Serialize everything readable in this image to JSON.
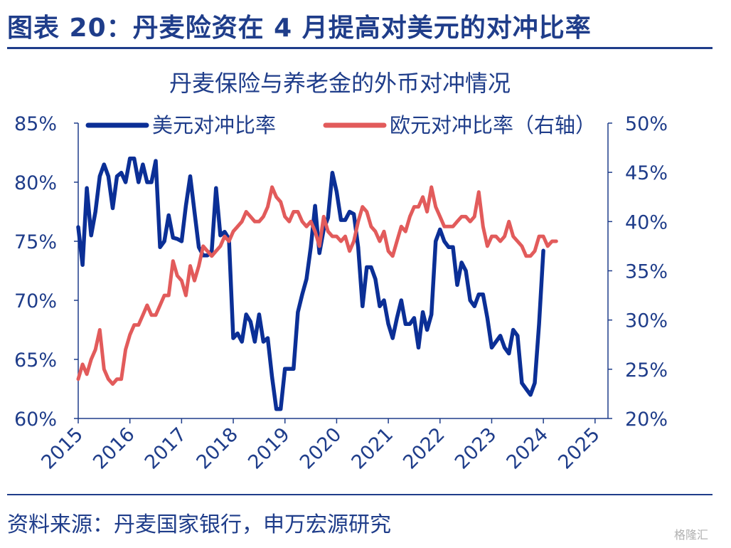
{
  "header": {
    "figure_title": "图表 20：丹麦险资在 4 月提高对美元的对冲比率"
  },
  "footer": {
    "source": "资料来源：丹麦国家银行，申万宏源研究",
    "watermark": "格隆汇"
  },
  "colors": {
    "primary": "#1f3d8a",
    "usd_series": "#0b2f96",
    "eur_series": "#e25b5b",
    "axis": "#1f3d8a"
  },
  "chart_data": {
    "type": "line",
    "title": "丹麦保险与养老金的外币对冲情况",
    "x_ticks": [
      "2015",
      "2016",
      "2017",
      "2018",
      "2019",
      "2020",
      "2021",
      "2022",
      "2023",
      "2024",
      "2025"
    ],
    "y_left": {
      "lim": [
        60,
        85
      ],
      "ticks": [
        "60%",
        "65%",
        "70%",
        "75%",
        "80%",
        "85%"
      ]
    },
    "y_right": {
      "lim": [
        20,
        50
      ],
      "ticks": [
        "20%",
        "25%",
        "30%",
        "35%",
        "40%",
        "45%",
        "50%"
      ]
    },
    "legend_position": "top",
    "series": [
      {
        "name": "美元对冲比率",
        "axis": "left",
        "x_start": "2015-01",
        "frequency": "monthly",
        "values": [
          76.2,
          73.0,
          79.5,
          75.5,
          77.5,
          80.5,
          81.5,
          80.5,
          77.8,
          80.5,
          80.8,
          80.0,
          82.0,
          82.0,
          80.0,
          81.5,
          80.0,
          80.0,
          81.8,
          74.5,
          75.0,
          77.2,
          75.3,
          75.2,
          75.0,
          78.0,
          80.5,
          77.5,
          74.5,
          73.8,
          73.8,
          74.2,
          79.5,
          75.5,
          75.8,
          75.2,
          66.8,
          67.2,
          66.5,
          68.8,
          68.2,
          66.5,
          68.8,
          66.5,
          66.8,
          63.5,
          60.8,
          60.8,
          64.2,
          64.2,
          64.2,
          69.0,
          70.5,
          71.8,
          74.5,
          78.0,
          74.0,
          76.0,
          77.0,
          80.8,
          79.2,
          76.8,
          76.8,
          77.5,
          77.3,
          74.5,
          69.5,
          72.8,
          72.8,
          71.8,
          69.5,
          70.0,
          68.0,
          66.8,
          68.5,
          70.0,
          68.0,
          68.0,
          68.5,
          66.0,
          69.0,
          67.5,
          68.8,
          75.0,
          76.0,
          75.0,
          74.5,
          74.5,
          71.3,
          73.2,
          72.5,
          70.0,
          69.5,
          70.5,
          70.5,
          68.5,
          66.0,
          66.5,
          67.0,
          66.0,
          65.5,
          67.5,
          67.0,
          63.0,
          62.5,
          62.0,
          63.0,
          68.0,
          74.2
        ]
      },
      {
        "name": "欧元对冲比率（右轴）",
        "axis": "right",
        "x_start": "2015-01",
        "frequency": "monthly",
        "values": [
          24.0,
          25.5,
          24.5,
          26.0,
          27.0,
          29.0,
          25.0,
          24.0,
          23.5,
          24.0,
          24.0,
          27.0,
          28.5,
          29.5,
          29.5,
          30.5,
          31.5,
          30.5,
          30.5,
          31.5,
          32.5,
          32.5,
          36.0,
          34.5,
          34.0,
          32.5,
          35.5,
          34.0,
          35.5,
          37.5,
          37.0,
          36.5,
          37.0,
          37.5,
          38.5,
          38.0,
          39.0,
          39.5,
          40.0,
          41.0,
          40.5,
          40.0,
          40.0,
          40.5,
          41.5,
          43.5,
          42.5,
          42.0,
          40.5,
          40.0,
          41.0,
          41.0,
          40.0,
          39.5,
          40.0,
          39.0,
          37.5,
          40.5,
          39.0,
          38.5,
          38.5,
          38.0,
          38.5,
          37.0,
          38.0,
          40.0,
          41.5,
          41.0,
          39.5,
          39.0,
          38.0,
          39.0,
          37.0,
          36.5,
          38.0,
          39.5,
          39.0,
          40.5,
          41.5,
          41.5,
          42.5,
          41.0,
          43.5,
          41.5,
          40.5,
          39.5,
          39.5,
          39.5,
          40.0,
          40.5,
          40.5,
          40.0,
          40.5,
          43.0,
          39.5,
          37.5,
          38.5,
          38.5,
          38.0,
          38.5,
          40.0,
          38.5,
          38.0,
          37.5,
          36.5,
          36.5,
          37.0,
          38.5,
          38.5,
          37.5,
          38.0,
          38.0
        ]
      }
    ]
  }
}
